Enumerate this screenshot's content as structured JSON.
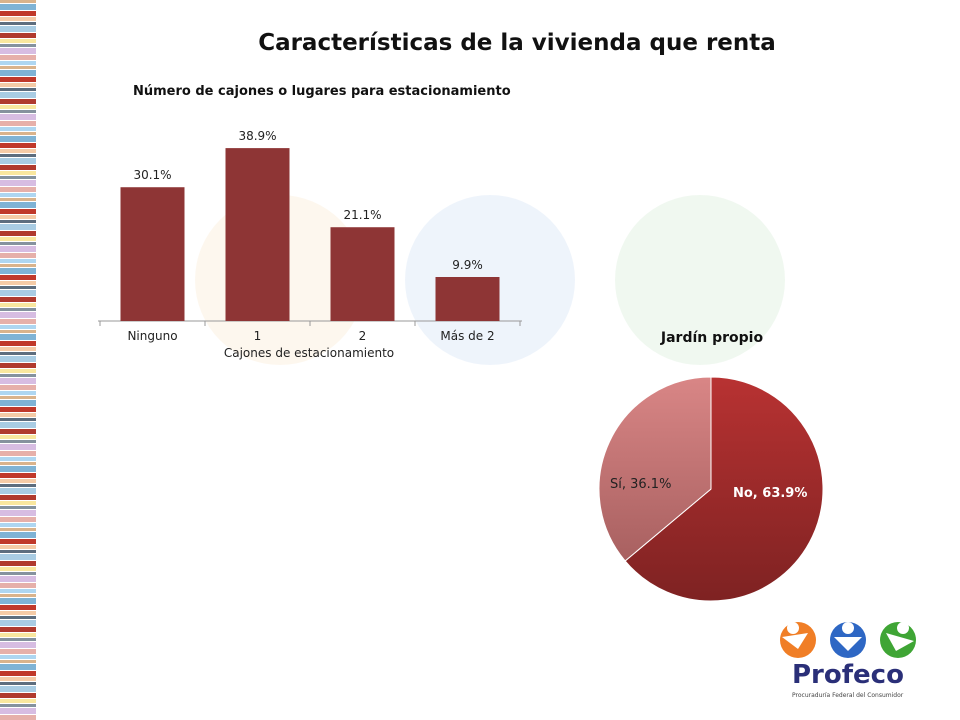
{
  "slide": {
    "title": "Características de la vivienda que renta"
  },
  "chart_data": [
    {
      "type": "bar",
      "title": "Número de cajones o lugares para estacionamiento",
      "xlabel": "Cajones de estacionamiento",
      "categories": [
        "Ninguno",
        "1",
        "2",
        "Más de 2"
      ],
      "values": [
        30.1,
        38.9,
        21.1,
        9.9
      ],
      "data_labels": [
        "30.1%",
        "38.9%",
        "21.1%",
        "9.9%"
      ],
      "ylim": [
        0,
        45
      ],
      "grid": false,
      "color": "#8e3535"
    },
    {
      "type": "pie",
      "title": "Jardín propio",
      "categories": [
        "No",
        "Sí"
      ],
      "values": [
        63.9,
        36.1
      ],
      "data_labels": [
        "No, 63.9%",
        "Sí, 36.1%"
      ],
      "colors": [
        "#a62d2d",
        "#c97474"
      ]
    }
  ],
  "logo": {
    "name": "Profeco",
    "subtitle": "Procuraduría Federal del Consumidor",
    "icon": "profeco-logo-icon"
  }
}
